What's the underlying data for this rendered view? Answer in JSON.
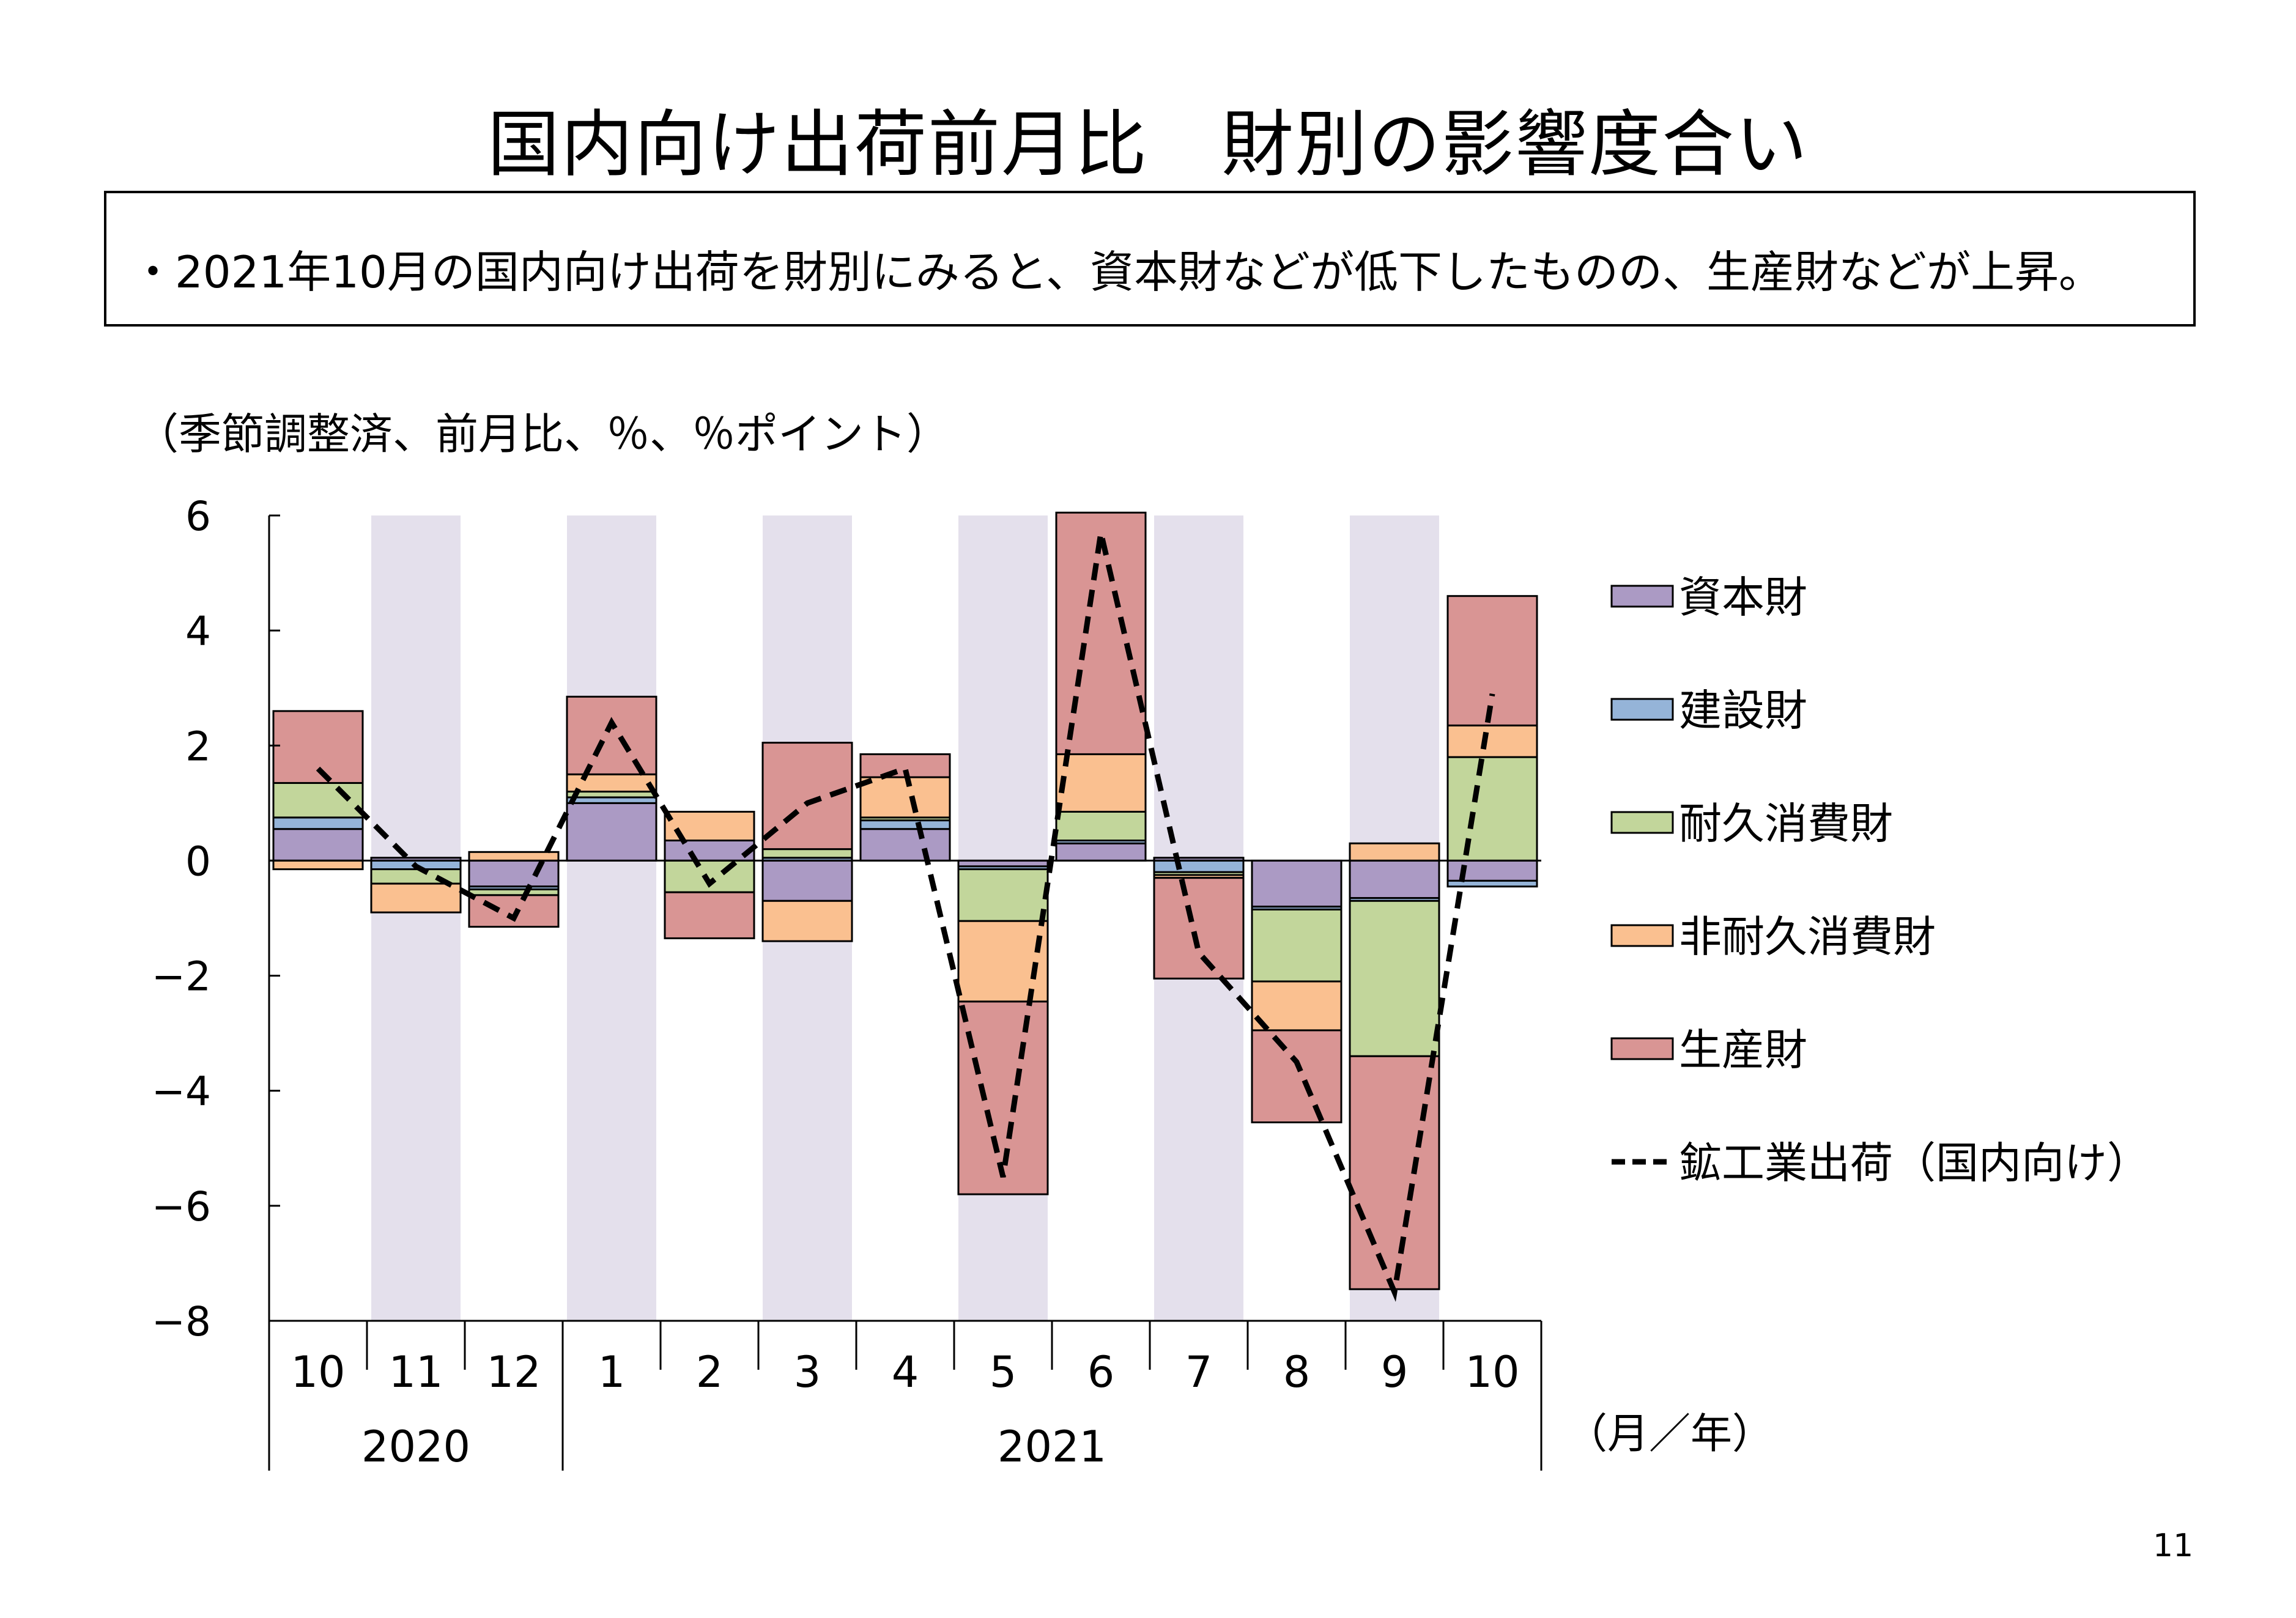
{
  "header": {
    "title": "国内向け出荷前月比　財別の影響度合い",
    "summary": "・2021年10月の国内向け出荷を財別にみると、資本財などが低下したものの、生産財などが上昇。",
    "unit_note": "（季節調整済、前月比、％、％ポイント）"
  },
  "page_number": "11",
  "chart_data": {
    "type": "bar",
    "stacked": true,
    "ylim": [
      -8,
      6
    ],
    "yticks": [
      6,
      4,
      2,
      0,
      -2,
      -4,
      -6,
      -8
    ],
    "ytick_labels": [
      "6",
      "4",
      "2",
      "0",
      "−2",
      "−4",
      "−6",
      "−8"
    ],
    "categories": [
      "10",
      "11",
      "12",
      "1",
      "2",
      "3",
      "4",
      "5",
      "6",
      "7",
      "8",
      "9",
      "10"
    ],
    "year_groups": [
      {
        "label": "2020",
        "start": 0,
        "end": 2
      },
      {
        "label": "2021",
        "start": 3,
        "end": 12
      }
    ],
    "x_unit_label": "（月／年）",
    "shaded_categories": [
      1,
      3,
      5,
      7,
      9,
      11
    ],
    "shade_color": "#e4e0ec",
    "series": [
      {
        "name": "資本財",
        "color": "#ab9ac4",
        "values": [
          0.55,
          0.05,
          -0.45,
          1.0,
          0.35,
          -0.7,
          0.55,
          -0.1,
          0.3,
          0.05,
          -0.8,
          -0.65,
          -0.35
        ]
      },
      {
        "name": "建設財",
        "color": "#95b4d8",
        "values": [
          0.2,
          -0.15,
          -0.05,
          0.1,
          0.0,
          0.05,
          0.15,
          -0.05,
          0.05,
          -0.2,
          -0.05,
          -0.05,
          -0.1
        ]
      },
      {
        "name": "耐久消費財",
        "color": "#c2d69b",
        "values": [
          0.6,
          -0.25,
          -0.1,
          0.1,
          -0.55,
          0.15,
          0.05,
          -0.9,
          0.5,
          -0.05,
          -1.25,
          -2.7,
          1.8
        ]
      },
      {
        "name": "非耐久消費財",
        "color": "#fac090",
        "values": [
          -0.15,
          -0.5,
          0.15,
          0.3,
          0.5,
          -0.7,
          0.7,
          -1.4,
          1.0,
          -0.05,
          -0.85,
          0.3,
          0.55
        ]
      },
      {
        "name": "生産財",
        "color": "#d99594",
        "values": [
          1.25,
          0.0,
          -0.55,
          1.35,
          -0.8,
          1.85,
          0.4,
          -3.35,
          4.2,
          -1.75,
          -1.6,
          -4.05,
          2.25
        ]
      }
    ],
    "line": {
      "name": "鉱工業出荷（国内向け）",
      "values": [
        1.6,
        -0.1,
        -1.0,
        2.4,
        -0.4,
        1.0,
        1.6,
        -5.5,
        5.7,
        -1.6,
        -3.5,
        -7.5,
        2.9
      ]
    },
    "legend_position": "right"
  }
}
